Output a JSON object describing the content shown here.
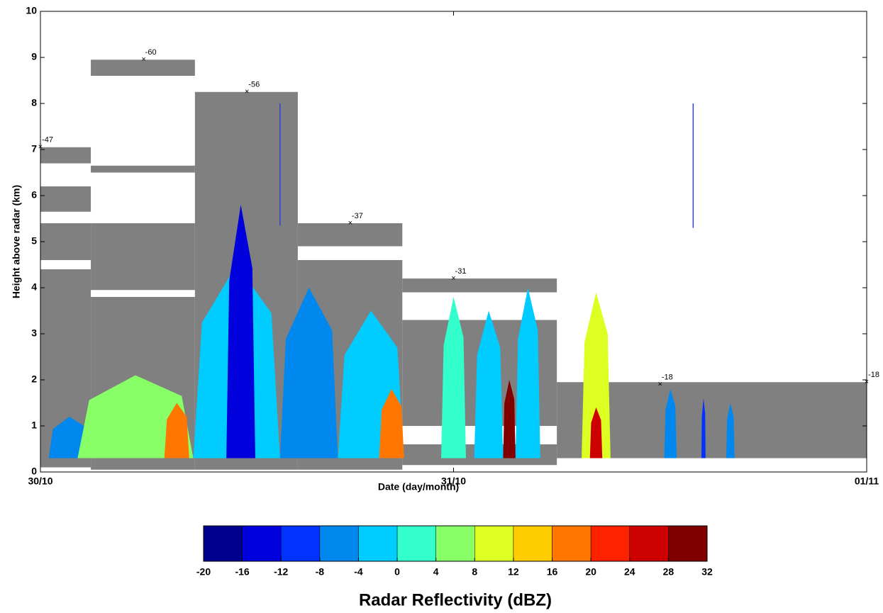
{
  "chart_data": {
    "type": "radar-time-height",
    "xlabel": "Date (day/month)",
    "ylabel": "Height above radar (km)",
    "xlim": [
      0,
      2
    ],
    "xticks": [
      {
        "value": 0,
        "label": "30/10"
      },
      {
        "value": 1,
        "label": "31/10"
      },
      {
        "value": 2,
        "label": "01/11"
      }
    ],
    "ylim": [
      0,
      10
    ],
    "yticks": [
      0,
      1,
      2,
      3,
      4,
      5,
      6,
      7,
      8,
      9,
      10
    ],
    "cloud_color": "#808080",
    "cloud_layers": [
      {
        "x": [
          0,
          0.122
        ],
        "base": 0.1,
        "top": 4.4
      },
      {
        "x": [
          0,
          0.122
        ],
        "base": 4.6,
        "top": 5.4
      },
      {
        "x": [
          0,
          0.122
        ],
        "base": 5.65,
        "top": 6.2
      },
      {
        "x": [
          0,
          0.122
        ],
        "base": 6.7,
        "top": 7.05
      },
      {
        "x": [
          0.122,
          0.374
        ],
        "base": 0.05,
        "top": 3.8
      },
      {
        "x": [
          0.122,
          0.374
        ],
        "base": 3.95,
        "top": 5.4
      },
      {
        "x": [
          0.122,
          0.374
        ],
        "base": 6.5,
        "top": 6.65
      },
      {
        "x": [
          0.122,
          0.374
        ],
        "base": 8.6,
        "top": 8.95
      },
      {
        "x": [
          0.374,
          0.623
        ],
        "base": 0.05,
        "top": 8.25
      },
      {
        "x": [
          0.623,
          0.876
        ],
        "base": 0.05,
        "top": 4.6
      },
      {
        "x": [
          0.623,
          0.876
        ],
        "base": 4.9,
        "top": 5.4
      },
      {
        "x": [
          0.876,
          1.25
        ],
        "base": 0.15,
        "top": 0.6
      },
      {
        "x": [
          0.876,
          1.25
        ],
        "base": 1.0,
        "top": 3.3
      },
      {
        "x": [
          0.876,
          1.25
        ],
        "base": 3.9,
        "top": 4.2
      },
      {
        "x": [
          1.25,
          2
        ],
        "base": 0.3,
        "top": 1.95
      }
    ],
    "echo_base": 0.3,
    "echoes": [
      {
        "x": [
          0.02,
          0.12
        ],
        "top": 1.2,
        "dbz": -8
      },
      {
        "x": [
          0.09,
          0.37
        ],
        "top": 2.1,
        "dbz": 4
      },
      {
        "x": [
          0.3,
          0.36
        ],
        "top": 1.5,
        "dbz": 18
      },
      {
        "x": [
          0.37,
          0.58
        ],
        "top": 4.5,
        "dbz": -2
      },
      {
        "x": [
          0.45,
          0.52
        ],
        "top": 5.8,
        "dbz": -14
      },
      {
        "x": [
          0.58,
          0.72
        ],
        "top": 4.0,
        "dbz": -6
      },
      {
        "x": [
          0.72,
          0.88
        ],
        "top": 3.5,
        "dbz": -4
      },
      {
        "x": [
          0.82,
          0.88
        ],
        "top": 1.8,
        "dbz": 16
      },
      {
        "x": [
          0.97,
          1.03
        ],
        "top": 3.8,
        "dbz": 0
      },
      {
        "x": [
          1.05,
          1.12
        ],
        "top": 3.5,
        "dbz": -2
      },
      {
        "x": [
          1.12,
          1.15
        ],
        "top": 2.0,
        "dbz": 28
      },
      {
        "x": [
          1.15,
          1.21
        ],
        "top": 4.0,
        "dbz": -4
      },
      {
        "x": [
          1.31,
          1.38
        ],
        "top": 3.9,
        "dbz": 8
      },
      {
        "x": [
          1.33,
          1.36
        ],
        "top": 1.4,
        "dbz": 26
      },
      {
        "x": [
          1.51,
          1.54
        ],
        "top": 1.8,
        "dbz": -8
      },
      {
        "x": [
          1.6,
          1.61
        ],
        "top": 1.6,
        "dbz": -10
      },
      {
        "x": [
          1.66,
          1.68
        ],
        "top": 1.5,
        "dbz": -8
      }
    ],
    "vertical_lines": [
      {
        "x": 0.58,
        "y": [
          5.35,
          8
        ]
      },
      {
        "x": 1.58,
        "y": [
          5.3,
          8
        ]
      }
    ],
    "line_color": "#3344cc",
    "temperature_labels": [
      {
        "x": 0,
        "y": 7.05,
        "label": "-47"
      },
      {
        "x": 0.25,
        "y": 8.95,
        "label": "-60"
      },
      {
        "x": 0.5,
        "y": 8.25,
        "label": "-56"
      },
      {
        "x": 0.75,
        "y": 5.4,
        "label": "-37"
      },
      {
        "x": 1.0,
        "y": 4.2,
        "label": "-31"
      },
      {
        "x": 1.5,
        "y": 1.9,
        "label": "-18"
      },
      {
        "x": 2.0,
        "y": 1.95,
        "label": "-18"
      }
    ],
    "colorbar": {
      "label": "Radar Reflectivity (dBZ)",
      "bins": [
        -20,
        -16,
        -12,
        -8,
        -4,
        0,
        4,
        8,
        12,
        16,
        20,
        24,
        28,
        32
      ],
      "colors": [
        "#00008f",
        "#0000dd",
        "#0033ff",
        "#0088ee",
        "#00ccff",
        "#33ffcc",
        "#88ff66",
        "#ddff22",
        "#ffcc00",
        "#ff7700",
        "#ff2200",
        "#cc0000",
        "#800000"
      ]
    }
  }
}
